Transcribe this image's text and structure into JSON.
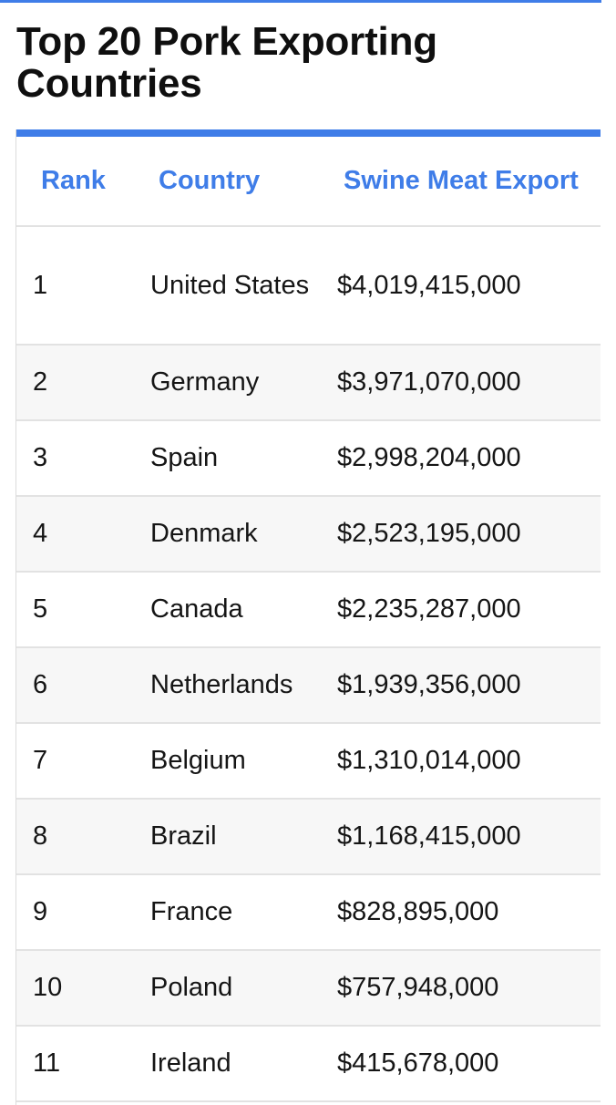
{
  "page": {
    "title": "Top 20 Pork Exporting Countries",
    "accent_color": "#3f7de8"
  },
  "table": {
    "headers": {
      "rank": "Rank",
      "country": "Country",
      "export": "Swine Meat Export"
    },
    "rows": [
      {
        "rank": "1",
        "country": "United States",
        "export": "$4,019,415,000"
      },
      {
        "rank": "2",
        "country": "Germany",
        "export": "$3,971,070,000"
      },
      {
        "rank": "3",
        "country": "Spain",
        "export": "$2,998,204,000"
      },
      {
        "rank": "4",
        "country": "Denmark",
        "export": "$2,523,195,000"
      },
      {
        "rank": "5",
        "country": "Canada",
        "export": "$2,235,287,000"
      },
      {
        "rank": "6",
        "country": "Netherlands",
        "export": "$1,939,356,000"
      },
      {
        "rank": "7",
        "country": "Belgium",
        "export": "$1,310,014,000"
      },
      {
        "rank": "8",
        "country": "Brazil",
        "export": "$1,168,415,000"
      },
      {
        "rank": "9",
        "country": "France",
        "export": "$828,895,000"
      },
      {
        "rank": "10",
        "country": "Poland",
        "export": "$757,948,000"
      },
      {
        "rank": "11",
        "country": "Ireland",
        "export": "$415,678,000"
      }
    ]
  }
}
